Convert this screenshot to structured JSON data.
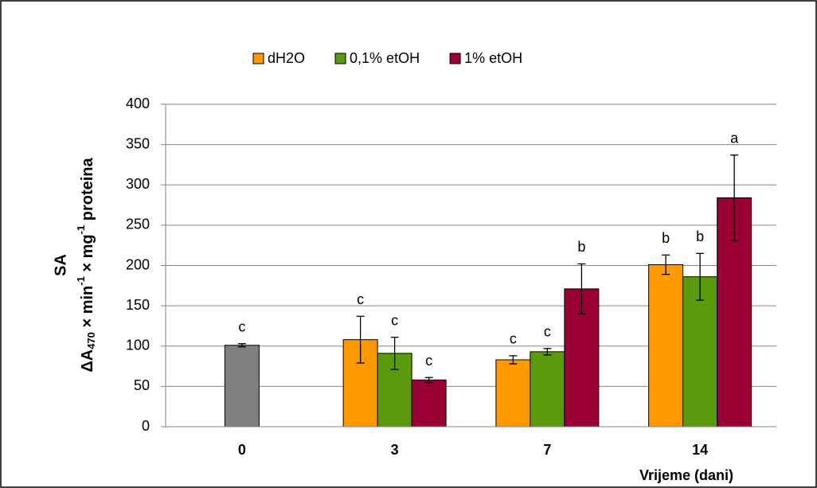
{
  "chart_data": {
    "type": "bar",
    "categories": [
      "0",
      "3",
      "7",
      "14"
    ],
    "x_label": "Vrijeme (dani)",
    "y_title": "SA",
    "y_label_parts": [
      "ΔA",
      "470",
      " × min",
      "-1",
      " × mg",
      "-1",
      " proteina"
    ],
    "ylim": [
      0,
      400
    ],
    "yticks": [
      0,
      50,
      100,
      150,
      200,
      250,
      300,
      350,
      400
    ],
    "grid": true,
    "legend": "top",
    "series": [
      {
        "color": "#808080",
        "values": [
          101,
          null,
          null,
          null
        ],
        "errors": [
          2,
          null,
          null,
          null
        ],
        "annotations": [
          "c",
          null,
          null,
          null
        ]
      },
      {
        "name": "dH2O",
        "color": "#ff9900",
        "values": [
          null,
          108,
          83,
          201
        ],
        "errors": [
          null,
          29,
          5,
          12
        ],
        "annotations": [
          null,
          "c",
          "c",
          "b"
        ]
      },
      {
        "name": "0,1% etOH",
        "color": "#5b9a0c",
        "values": [
          null,
          91,
          93,
          186
        ],
        "errors": [
          null,
          20,
          4,
          29
        ],
        "annotations": [
          null,
          "c",
          "c",
          "b"
        ]
      },
      {
        "name": "1% etOH",
        "color": "#990033",
        "values": [
          null,
          58,
          171,
          284
        ],
        "errors": [
          null,
          3,
          31,
          53
        ],
        "annotations": [
          null,
          "c",
          "b",
          "a"
        ]
      }
    ]
  }
}
